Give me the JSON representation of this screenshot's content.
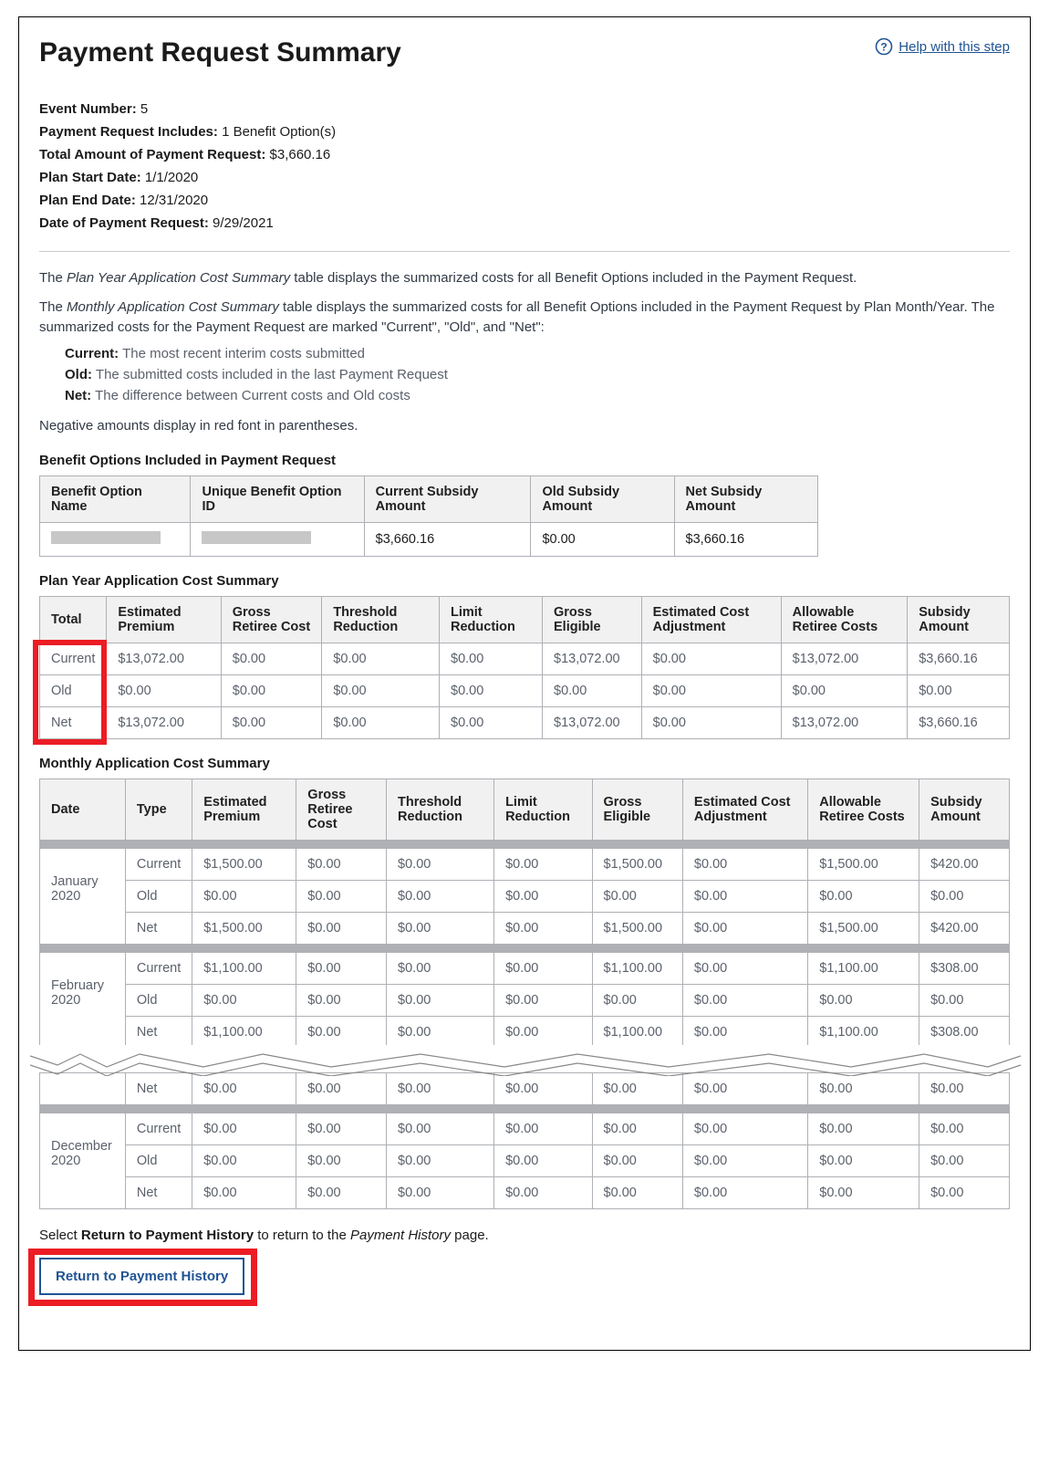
{
  "title": "Payment Request Summary",
  "help_label": "Help with this step",
  "meta": {
    "event_number_label": "Event Number:",
    "event_number": "5",
    "includes_label": "Payment Request Includes:",
    "includes": "1 Benefit Option(s)",
    "total_label": "Total Amount of Payment Request:",
    "total": "$3,660.16",
    "start_label": "Plan Start Date:",
    "start": "1/1/2020",
    "end_label": "Plan End Date:",
    "end": "12/31/2020",
    "date_label": "Date of Payment Request:",
    "date": "9/29/2021"
  },
  "para_plan_year": "The Plan Year Application Cost Summary table displays the summarized costs for all Benefit Options included in the Payment Request.",
  "para_plan_year_em": "Plan Year Application Cost Summary",
  "para_monthly": "The Monthly Application Cost Summary table displays the summarized costs for all Benefit Options included in the Payment Request by Plan Month/Year. The summarized costs for the Payment Request are marked \"Current\", \"Old\", and \"Net\":",
  "para_monthly_em": "Monthly Application Cost Summary",
  "defs": {
    "current_l": "Current:",
    "current_t": "The most recent interim costs submitted",
    "old_l": "Old:",
    "old_t": "The submitted costs included in the last Payment Request",
    "net_l": "Net:",
    "net_t": "The difference between Current costs and Old costs"
  },
  "negative_note": "Negative amounts display in red font in parentheses.",
  "benefit": {
    "label": "Benefit Options Included in Payment Request",
    "headers": [
      "Benefit Option Name",
      "Unique Benefit Option ID",
      "Current Subsidy Amount",
      "Old Subsidy Amount",
      "Net Subsidy Amount"
    ],
    "row": [
      "",
      "",
      "$3,660.16",
      "$0.00",
      "$3,660.16"
    ]
  },
  "plan_year": {
    "label": "Plan Year Application Cost Summary",
    "headers": [
      "Total",
      "Estimated Premium",
      "Gross Retiree Cost",
      "Threshold Reduction",
      "Limit Reduction",
      "Gross Eligible",
      "Estimated Cost Adjustment",
      "Allowable Retiree Costs",
      "Subsidy Amount"
    ],
    "rows": [
      [
        "Current",
        "$13,072.00",
        "$0.00",
        "$0.00",
        "$0.00",
        "$13,072.00",
        "$0.00",
        "$13,072.00",
        "$3,660.16"
      ],
      [
        "Old",
        "$0.00",
        "$0.00",
        "$0.00",
        "$0.00",
        "$0.00",
        "$0.00",
        "$0.00",
        "$0.00"
      ],
      [
        "Net",
        "$13,072.00",
        "$0.00",
        "$0.00",
        "$0.00",
        "$13,072.00",
        "$0.00",
        "$13,072.00",
        "$3,660.16"
      ]
    ]
  },
  "monthly": {
    "label": "Monthly Application Cost Summary",
    "headers": [
      "Date",
      "Type",
      "Estimated Premium",
      "Gross Retiree Cost",
      "Threshold Reduction",
      "Limit Reduction",
      "Gross Eligible",
      "Estimated Cost Adjustment",
      "Allowable Retiree Costs",
      "Subsidy Amount"
    ],
    "groups": [
      {
        "month": "January 2020",
        "rows": [
          [
            "Current",
            "$1,500.00",
            "$0.00",
            "$0.00",
            "$0.00",
            "$1,500.00",
            "$0.00",
            "$1,500.00",
            "$420.00"
          ],
          [
            "Old",
            "$0.00",
            "$0.00",
            "$0.00",
            "$0.00",
            "$0.00",
            "$0.00",
            "$0.00",
            "$0.00"
          ],
          [
            "Net",
            "$1,500.00",
            "$0.00",
            "$0.00",
            "$0.00",
            "$1,500.00",
            "$0.00",
            "$1,500.00",
            "$420.00"
          ]
        ]
      },
      {
        "month": "February 2020",
        "rows": [
          [
            "Current",
            "$1,100.00",
            "$0.00",
            "$0.00",
            "$0.00",
            "$1,100.00",
            "$0.00",
            "$1,100.00",
            "$308.00"
          ],
          [
            "Old",
            "$0.00",
            "$0.00",
            "$0.00",
            "$0.00",
            "$0.00",
            "$0.00",
            "$0.00",
            "$0.00"
          ],
          [
            "Net",
            "$1,100.00",
            "$0.00",
            "$0.00",
            "$0.00",
            "$1,100.00",
            "$0.00",
            "$1,100.00",
            "$308.00"
          ]
        ]
      }
    ],
    "tail_net_row": [
      "Net",
      "$0.00",
      "$0.00",
      "$0.00",
      "$0.00",
      "$0.00",
      "$0.00",
      "$0.00",
      "$0.00"
    ],
    "december": {
      "month": "December 2020",
      "rows": [
        [
          "Current",
          "$0.00",
          "$0.00",
          "$0.00",
          "$0.00",
          "$0.00",
          "$0.00",
          "$0.00",
          "$0.00"
        ],
        [
          "Old",
          "$0.00",
          "$0.00",
          "$0.00",
          "$0.00",
          "$0.00",
          "$0.00",
          "$0.00",
          "$0.00"
        ],
        [
          "Net",
          "$0.00",
          "$0.00",
          "$0.00",
          "$0.00",
          "$0.00",
          "$0.00",
          "$0.00",
          "$0.00"
        ]
      ]
    }
  },
  "footer_text_pre": "Select ",
  "footer_text_bold": "Return to Payment History",
  "footer_text_mid": " to return to the ",
  "footer_text_em": "Payment History",
  "footer_text_post": " page.",
  "button_label": "Return to Payment History",
  "colors": {
    "link": "#205493",
    "highlight_red": "#ec1c24",
    "border": "#aeb0b5",
    "header_bg": "#f1f1f1",
    "muted_text": "#5b616b"
  }
}
